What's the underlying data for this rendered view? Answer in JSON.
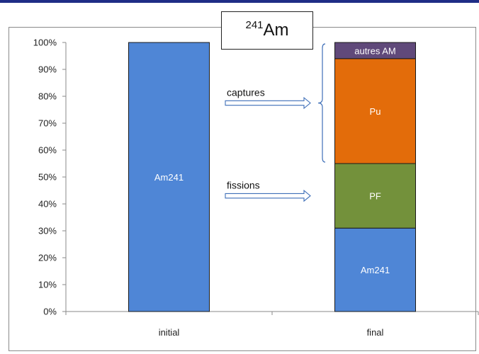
{
  "chart_data": {
    "type": "bar",
    "stacked": true,
    "title_isotope": "241",
    "title_symbol": "Am",
    "categories": [
      "initial",
      "final"
    ],
    "ylim": [
      0,
      100
    ],
    "yticks": [
      "0%",
      "10%",
      "20%",
      "30%",
      "40%",
      "50%",
      "60%",
      "70%",
      "80%",
      "90%",
      "100%"
    ],
    "grid": false,
    "legend": "none",
    "series": [
      {
        "name": "Am241",
        "values": [
          100,
          31
        ],
        "color": "#4f86d6"
      },
      {
        "name": "PF",
        "values": [
          0,
          24
        ],
        "color": "#73913b"
      },
      {
        "name": "Pu",
        "values": [
          0,
          39
        ],
        "color": "#e36c0a"
      },
      {
        "name": "autres AM",
        "values": [
          0,
          6
        ],
        "color": "#60497a"
      }
    ],
    "annotations": [
      {
        "text": "captures",
        "target_series": [
          "Pu",
          "autres AM"
        ]
      },
      {
        "text": "fissions",
        "target_series": [
          "PF"
        ]
      }
    ]
  }
}
